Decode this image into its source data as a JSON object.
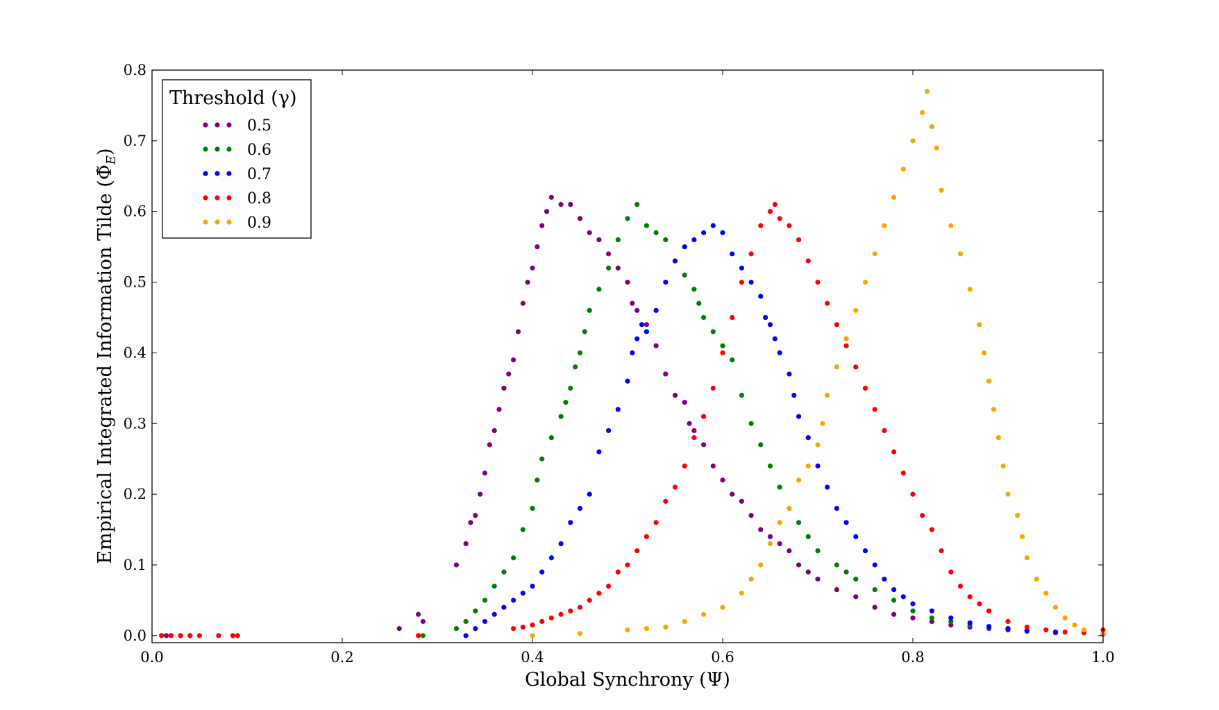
{
  "chart_data": {
    "type": "scatter",
    "xlabel": "Global Synchrony (Ψ)",
    "ylabel": "Empirical Integrated Information Tilde (Φ̃",
    "ylabel_subscript": "E",
    "ylabel_suffix": ")",
    "xlim": [
      0.0,
      1.0
    ],
    "ylim": [
      -0.01,
      0.8
    ],
    "xticks": [
      0.0,
      0.2,
      0.4,
      0.6,
      0.8,
      1.0
    ],
    "xtick_labels": [
      "0.0",
      "0.2",
      "0.4",
      "0.6",
      "0.8",
      "1.0"
    ],
    "yticks": [
      0.0,
      0.1,
      0.2,
      0.3,
      0.4,
      0.5,
      0.6,
      0.7,
      0.8
    ],
    "ytick_labels": [
      "0.0",
      "0.1",
      "0.2",
      "0.3",
      "0.4",
      "0.5",
      "0.6",
      "0.7",
      "0.8"
    ],
    "grid": false,
    "legend": {
      "title": "Threshold (γ)",
      "placement": "top-left"
    },
    "series": [
      {
        "name": "0.5",
        "color": "#800080",
        "points": [
          [
            0.01,
            0
          ],
          [
            0.015,
            0
          ],
          [
            0.02,
            0
          ],
          [
            0.03,
            0
          ],
          [
            0.04,
            0
          ],
          [
            0.26,
            0.01
          ],
          [
            0.28,
            0.03
          ],
          [
            0.285,
            0.02
          ],
          [
            0.32,
            0.1
          ],
          [
            0.33,
            0.13
          ],
          [
            0.335,
            0.16
          ],
          [
            0.34,
            0.17
          ],
          [
            0.345,
            0.2
          ],
          [
            0.35,
            0.23
          ],
          [
            0.355,
            0.27
          ],
          [
            0.36,
            0.29
          ],
          [
            0.365,
            0.32
          ],
          [
            0.37,
            0.35
          ],
          [
            0.375,
            0.37
          ],
          [
            0.38,
            0.39
          ],
          [
            0.385,
            0.43
          ],
          [
            0.39,
            0.47
          ],
          [
            0.395,
            0.5
          ],
          [
            0.4,
            0.52
          ],
          [
            0.405,
            0.55
          ],
          [
            0.41,
            0.58
          ],
          [
            0.415,
            0.6
          ],
          [
            0.42,
            0.62
          ],
          [
            0.43,
            0.61
          ],
          [
            0.44,
            0.61
          ],
          [
            0.45,
            0.59
          ],
          [
            0.46,
            0.57
          ],
          [
            0.47,
            0.56
          ],
          [
            0.48,
            0.54
          ],
          [
            0.49,
            0.52
          ],
          [
            0.5,
            0.5
          ],
          [
            0.505,
            0.47
          ],
          [
            0.51,
            0.46
          ],
          [
            0.52,
            0.44
          ],
          [
            0.53,
            0.41
          ],
          [
            0.54,
            0.37
          ],
          [
            0.55,
            0.34
          ],
          [
            0.56,
            0.33
          ],
          [
            0.565,
            0.3
          ],
          [
            0.57,
            0.29
          ],
          [
            0.58,
            0.27
          ],
          [
            0.59,
            0.24
          ],
          [
            0.6,
            0.22
          ],
          [
            0.61,
            0.2
          ],
          [
            0.62,
            0.19
          ],
          [
            0.63,
            0.17
          ],
          [
            0.64,
            0.15
          ],
          [
            0.65,
            0.14
          ],
          [
            0.66,
            0.13
          ],
          [
            0.67,
            0.12
          ],
          [
            0.68,
            0.1
          ],
          [
            0.69,
            0.09
          ],
          [
            0.7,
            0.08
          ],
          [
            0.72,
            0.065
          ],
          [
            0.74,
            0.055
          ],
          [
            0.76,
            0.04
          ],
          [
            0.78,
            0.03
          ],
          [
            0.8,
            0.025
          ],
          [
            0.82,
            0.02
          ],
          [
            0.84,
            0.015
          ],
          [
            0.86,
            0.012
          ],
          [
            0.88,
            0.01
          ],
          [
            0.9,
            0.008
          ],
          [
            0.92,
            0.006
          ],
          [
            0.95,
            0.004
          ],
          [
            1.0,
            0.002
          ]
        ]
      },
      {
        "name": "0.6",
        "color": "#008000",
        "points": [
          [
            0.285,
            0
          ],
          [
            0.32,
            0.01
          ],
          [
            0.33,
            0.02
          ],
          [
            0.34,
            0.035
          ],
          [
            0.35,
            0.05
          ],
          [
            0.36,
            0.07
          ],
          [
            0.37,
            0.09
          ],
          [
            0.38,
            0.11
          ],
          [
            0.39,
            0.15
          ],
          [
            0.4,
            0.18
          ],
          [
            0.405,
            0.22
          ],
          [
            0.41,
            0.25
          ],
          [
            0.42,
            0.28
          ],
          [
            0.43,
            0.31
          ],
          [
            0.435,
            0.33
          ],
          [
            0.44,
            0.35
          ],
          [
            0.445,
            0.38
          ],
          [
            0.45,
            0.4
          ],
          [
            0.455,
            0.43
          ],
          [
            0.46,
            0.46
          ],
          [
            0.47,
            0.49
          ],
          [
            0.48,
            0.52
          ],
          [
            0.49,
            0.56
          ],
          [
            0.5,
            0.59
          ],
          [
            0.51,
            0.61
          ],
          [
            0.52,
            0.58
          ],
          [
            0.53,
            0.57
          ],
          [
            0.54,
            0.56
          ],
          [
            0.55,
            0.53
          ],
          [
            0.56,
            0.51
          ],
          [
            0.57,
            0.49
          ],
          [
            0.575,
            0.47
          ],
          [
            0.58,
            0.45
          ],
          [
            0.59,
            0.43
          ],
          [
            0.6,
            0.41
          ],
          [
            0.61,
            0.39
          ],
          [
            0.62,
            0.34
          ],
          [
            0.63,
            0.3
          ],
          [
            0.64,
            0.27
          ],
          [
            0.65,
            0.24
          ],
          [
            0.66,
            0.21
          ],
          [
            0.67,
            0.18
          ],
          [
            0.68,
            0.16
          ],
          [
            0.69,
            0.14
          ],
          [
            0.7,
            0.12
          ],
          [
            0.72,
            0.1
          ],
          [
            0.73,
            0.09
          ],
          [
            0.74,
            0.08
          ],
          [
            0.76,
            0.065
          ],
          [
            0.78,
            0.05
          ],
          [
            0.8,
            0.035
          ],
          [
            0.82,
            0.025
          ],
          [
            0.84,
            0.02
          ],
          [
            0.86,
            0.015
          ],
          [
            0.88,
            0.012
          ],
          [
            0.9,
            0.01
          ],
          [
            0.92,
            0.007
          ],
          [
            0.95,
            0.005
          ],
          [
            1.0,
            0.003
          ]
        ]
      },
      {
        "name": "0.7",
        "color": "#0000ff",
        "points": [
          [
            0.33,
            0
          ],
          [
            0.34,
            0.01
          ],
          [
            0.35,
            0.02
          ],
          [
            0.36,
            0.03
          ],
          [
            0.37,
            0.04
          ],
          [
            0.38,
            0.05
          ],
          [
            0.39,
            0.06
          ],
          [
            0.4,
            0.07
          ],
          [
            0.41,
            0.09
          ],
          [
            0.42,
            0.11
          ],
          [
            0.43,
            0.13
          ],
          [
            0.44,
            0.16
          ],
          [
            0.45,
            0.18
          ],
          [
            0.46,
            0.2
          ],
          [
            0.47,
            0.26
          ],
          [
            0.48,
            0.29
          ],
          [
            0.49,
            0.32
          ],
          [
            0.5,
            0.36
          ],
          [
            0.505,
            0.4
          ],
          [
            0.51,
            0.42
          ],
          [
            0.515,
            0.44
          ],
          [
            0.52,
            0.43
          ],
          [
            0.53,
            0.46
          ],
          [
            0.54,
            0.5
          ],
          [
            0.55,
            0.53
          ],
          [
            0.56,
            0.55
          ],
          [
            0.57,
            0.56
          ],
          [
            0.58,
            0.57
          ],
          [
            0.59,
            0.58
          ],
          [
            0.6,
            0.57
          ],
          [
            0.61,
            0.54
          ],
          [
            0.62,
            0.52
          ],
          [
            0.63,
            0.5
          ],
          [
            0.64,
            0.48
          ],
          [
            0.645,
            0.45
          ],
          [
            0.65,
            0.44
          ],
          [
            0.655,
            0.42
          ],
          [
            0.66,
            0.4
          ],
          [
            0.67,
            0.37
          ],
          [
            0.675,
            0.34
          ],
          [
            0.68,
            0.31
          ],
          [
            0.69,
            0.28
          ],
          [
            0.7,
            0.24
          ],
          [
            0.71,
            0.21
          ],
          [
            0.72,
            0.18
          ],
          [
            0.73,
            0.16
          ],
          [
            0.74,
            0.14
          ],
          [
            0.75,
            0.12
          ],
          [
            0.76,
            0.1
          ],
          [
            0.77,
            0.08
          ],
          [
            0.78,
            0.065
          ],
          [
            0.79,
            0.055
          ],
          [
            0.8,
            0.045
          ],
          [
            0.82,
            0.035
          ],
          [
            0.84,
            0.025
          ],
          [
            0.86,
            0.018
          ],
          [
            0.88,
            0.013
          ],
          [
            0.9,
            0.01
          ],
          [
            0.92,
            0.007
          ],
          [
            0.95,
            0.005
          ],
          [
            1.0,
            0.003
          ]
        ]
      },
      {
        "name": "0.8",
        "color": "#ff0000",
        "points": [
          [
            0.01,
            0
          ],
          [
            0.02,
            0
          ],
          [
            0.03,
            0
          ],
          [
            0.04,
            0
          ],
          [
            0.05,
            0
          ],
          [
            0.07,
            0
          ],
          [
            0.085,
            0
          ],
          [
            0.09,
            0
          ],
          [
            0.28,
            0
          ],
          [
            0.38,
            0.01
          ],
          [
            0.39,
            0.012
          ],
          [
            0.4,
            0.015
          ],
          [
            0.41,
            0.02
          ],
          [
            0.42,
            0.025
          ],
          [
            0.43,
            0.03
          ],
          [
            0.44,
            0.035
          ],
          [
            0.45,
            0.04
          ],
          [
            0.46,
            0.05
          ],
          [
            0.47,
            0.06
          ],
          [
            0.48,
            0.07
          ],
          [
            0.49,
            0.09
          ],
          [
            0.5,
            0.1
          ],
          [
            0.51,
            0.12
          ],
          [
            0.52,
            0.14
          ],
          [
            0.53,
            0.16
          ],
          [
            0.54,
            0.19
          ],
          [
            0.55,
            0.21
          ],
          [
            0.56,
            0.24
          ],
          [
            0.57,
            0.28
          ],
          [
            0.58,
            0.31
          ],
          [
            0.59,
            0.35
          ],
          [
            0.6,
            0.4
          ],
          [
            0.61,
            0.45
          ],
          [
            0.62,
            0.5
          ],
          [
            0.63,
            0.54
          ],
          [
            0.64,
            0.58
          ],
          [
            0.65,
            0.6
          ],
          [
            0.655,
            0.61
          ],
          [
            0.66,
            0.59
          ],
          [
            0.67,
            0.58
          ],
          [
            0.68,
            0.56
          ],
          [
            0.69,
            0.53
          ],
          [
            0.7,
            0.5
          ],
          [
            0.71,
            0.47
          ],
          [
            0.72,
            0.44
          ],
          [
            0.73,
            0.41
          ],
          [
            0.74,
            0.38
          ],
          [
            0.75,
            0.35
          ],
          [
            0.76,
            0.32
          ],
          [
            0.77,
            0.29
          ],
          [
            0.78,
            0.26
          ],
          [
            0.79,
            0.23
          ],
          [
            0.8,
            0.2
          ],
          [
            0.81,
            0.17
          ],
          [
            0.82,
            0.15
          ],
          [
            0.83,
            0.12
          ],
          [
            0.84,
            0.09
          ],
          [
            0.85,
            0.07
          ],
          [
            0.86,
            0.055
          ],
          [
            0.87,
            0.045
          ],
          [
            0.88,
            0.035
          ],
          [
            0.9,
            0.02
          ],
          [
            0.92,
            0.012
          ],
          [
            0.94,
            0.008
          ],
          [
            0.96,
            0.005
          ],
          [
            0.98,
            0.004
          ],
          [
            1.0,
            0.008
          ]
        ]
      },
      {
        "name": "0.9",
        "color": "#ffa500",
        "points": [
          [
            0.4,
            0
          ],
          [
            0.45,
            0.003
          ],
          [
            0.5,
            0.008
          ],
          [
            0.52,
            0.01
          ],
          [
            0.54,
            0.012
          ],
          [
            0.56,
            0.02
          ],
          [
            0.58,
            0.03
          ],
          [
            0.6,
            0.04
          ],
          [
            0.62,
            0.06
          ],
          [
            0.63,
            0.08
          ],
          [
            0.64,
            0.1
          ],
          [
            0.65,
            0.13
          ],
          [
            0.66,
            0.16
          ],
          [
            0.67,
            0.18
          ],
          [
            0.68,
            0.22
          ],
          [
            0.69,
            0.24
          ],
          [
            0.7,
            0.27
          ],
          [
            0.705,
            0.3
          ],
          [
            0.71,
            0.34
          ],
          [
            0.72,
            0.38
          ],
          [
            0.73,
            0.42
          ],
          [
            0.74,
            0.46
          ],
          [
            0.75,
            0.5
          ],
          [
            0.76,
            0.54
          ],
          [
            0.77,
            0.58
          ],
          [
            0.78,
            0.62
          ],
          [
            0.79,
            0.66
          ],
          [
            0.8,
            0.7
          ],
          [
            0.81,
            0.74
          ],
          [
            0.815,
            0.77
          ],
          [
            0.82,
            0.72
          ],
          [
            0.825,
            0.69
          ],
          [
            0.83,
            0.63
          ],
          [
            0.84,
            0.58
          ],
          [
            0.85,
            0.54
          ],
          [
            0.86,
            0.49
          ],
          [
            0.87,
            0.44
          ],
          [
            0.875,
            0.4
          ],
          [
            0.88,
            0.36
          ],
          [
            0.885,
            0.32
          ],
          [
            0.89,
            0.28
          ],
          [
            0.895,
            0.24
          ],
          [
            0.9,
            0.2
          ],
          [
            0.91,
            0.17
          ],
          [
            0.915,
            0.14
          ],
          [
            0.92,
            0.11
          ],
          [
            0.93,
            0.08
          ],
          [
            0.94,
            0.06
          ],
          [
            0.95,
            0.04
          ],
          [
            0.96,
            0.025
          ],
          [
            0.97,
            0.015
          ],
          [
            0.98,
            0.008
          ],
          [
            1.0,
            0.003
          ]
        ]
      }
    ]
  }
}
